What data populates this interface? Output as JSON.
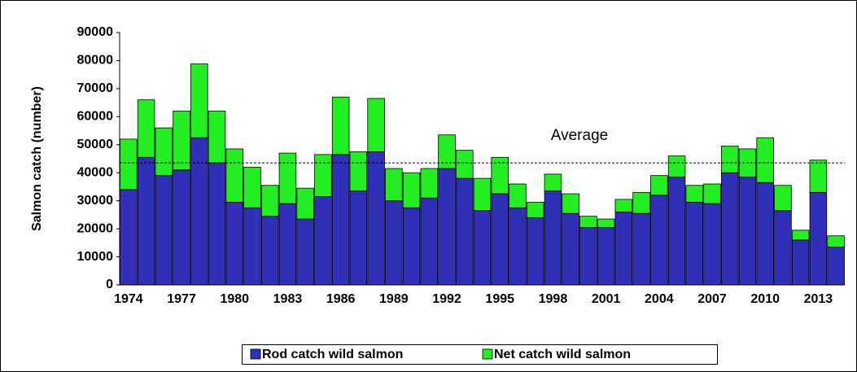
{
  "chart_data": {
    "type": "stacked_bar",
    "y_label": "Salmon catch (number)",
    "categories": [
      "1974",
      null,
      null,
      "1977",
      null,
      null,
      "1980",
      null,
      null,
      "1983",
      null,
      null,
      "1986",
      null,
      null,
      "1989",
      null,
      null,
      "1992",
      null,
      null,
      "1995",
      null,
      null,
      "1998",
      null,
      null,
      "2001",
      null,
      null,
      "2004",
      null,
      null,
      "2007",
      null,
      null,
      "2010",
      null,
      null,
      "2013",
      null
    ],
    "series": [
      {
        "name": "Rod catch wild salmon",
        "color": "#2f2fb8",
        "values": [
          34000,
          45500,
          39000,
          41000,
          52500,
          43500,
          29500,
          27500,
          24500,
          29000,
          23500,
          31500,
          46500,
          33500,
          47500,
          30000,
          27500,
          31000,
          41500,
          38000,
          26500,
          32500,
          27500,
          24000,
          33500,
          25500,
          20500,
          20500,
          26000,
          25500,
          32000,
          38500,
          29500,
          29000,
          40000,
          38500,
          36500,
          26500,
          16000,
          33000,
          13500
        ]
      },
      {
        "name": "Net catch wild salmon",
        "color": "#22ee22",
        "values": [
          18000,
          20500,
          17000,
          21000,
          26300,
          18500,
          19000,
          14500,
          11000,
          18000,
          11000,
          15000,
          20500,
          14000,
          19000,
          11500,
          12500,
          10500,
          12000,
          10000,
          11500,
          13000,
          8500,
          5500,
          6000,
          7000,
          4000,
          3000,
          4500,
          7500,
          7000,
          7500,
          6000,
          7000,
          9500,
          10000,
          16000,
          9000,
          3500,
          11500,
          4000
        ]
      }
    ],
    "average": 43500,
    "annotation": "Average",
    "ylim": [
      0,
      90000
    ],
    "yticks": [
      0,
      10000,
      20000,
      30000,
      40000,
      50000,
      60000,
      70000,
      80000,
      90000
    ],
    "grid": false
  }
}
